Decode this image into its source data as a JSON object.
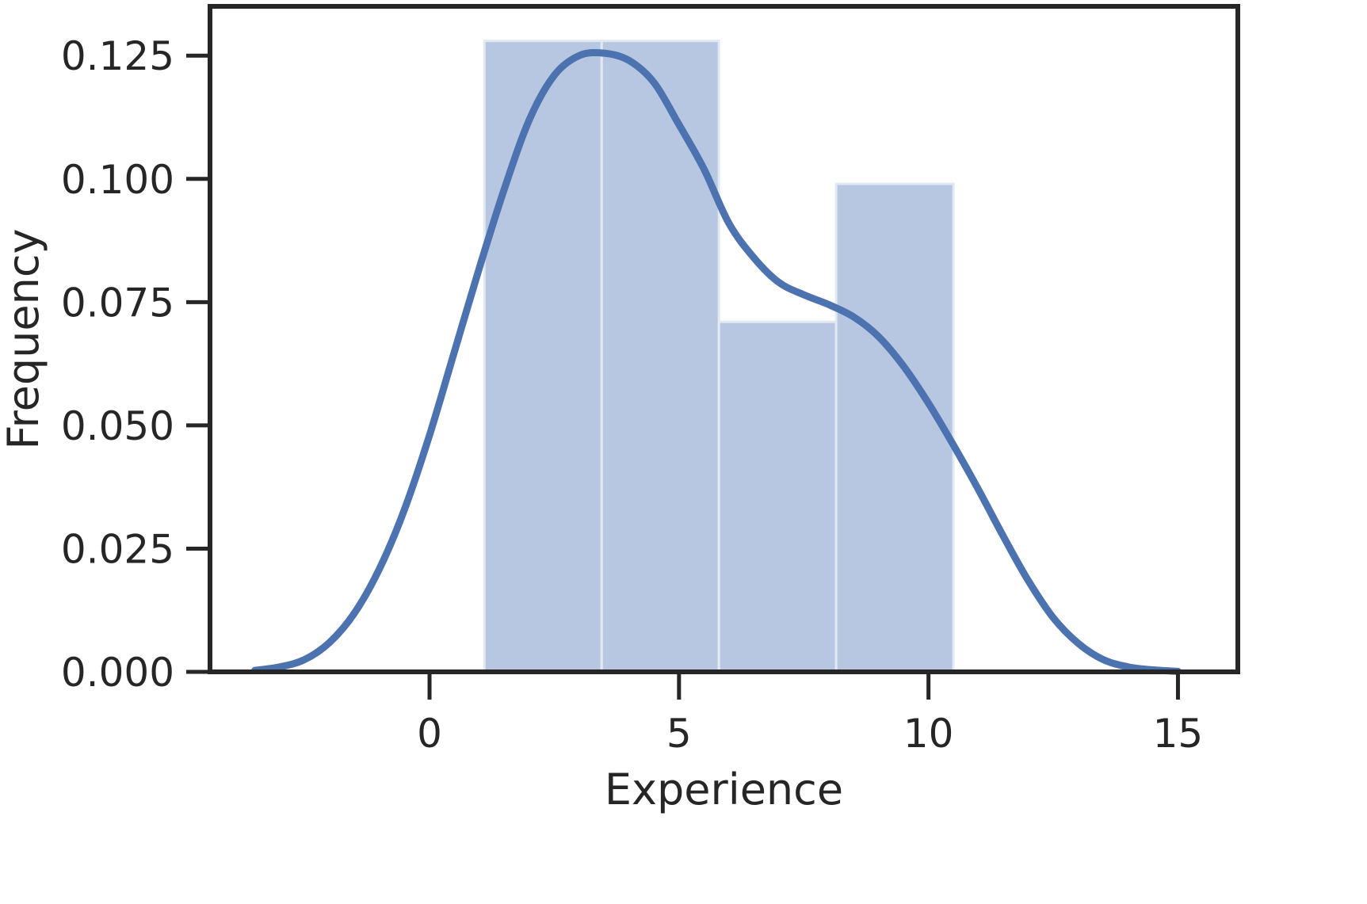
{
  "chart_data": {
    "type": "bar",
    "subtype": "histogram-with-kde",
    "title": "",
    "xlabel": "Experience",
    "ylabel": "Frequency",
    "xlim": [
      -4.4,
      16.2
    ],
    "ylim": [
      0,
      0.135
    ],
    "xticks": [
      0,
      5,
      10,
      15
    ],
    "yticks": [
      0.0,
      0.025,
      0.05,
      0.075,
      0.1,
      0.125
    ],
    "ytick_labels": [
      "0.000",
      "0.025",
      "0.050",
      "0.075",
      "0.100",
      "0.125"
    ],
    "xtick_labels": [
      "0",
      "5",
      "10",
      "15"
    ],
    "grid": false,
    "legend": "none",
    "histogram": {
      "bin_edges": [
        1.1,
        3.45,
        5.8,
        8.15,
        10.5
      ],
      "values": [
        0.128,
        0.128,
        0.071,
        0.099
      ],
      "color": "#b8c7e1",
      "edge_color": "#e3e9f3"
    },
    "kde": {
      "color": "#4c72b0",
      "x": [
        -3.5,
        -3.0,
        -2.5,
        -2.0,
        -1.5,
        -1.0,
        -0.5,
        0.0,
        0.5,
        1.0,
        1.5,
        2.0,
        2.5,
        3.0,
        3.5,
        4.0,
        4.5,
        5.0,
        5.5,
        6.0,
        6.5,
        7.0,
        7.5,
        8.0,
        8.5,
        9.0,
        9.5,
        10.0,
        10.5,
        11.0,
        11.5,
        12.0,
        12.5,
        13.0,
        13.5,
        14.0,
        14.5,
        15.0
      ],
      "y": [
        0.0003,
        0.001,
        0.0025,
        0.006,
        0.012,
        0.021,
        0.033,
        0.048,
        0.065,
        0.082,
        0.098,
        0.112,
        0.121,
        0.125,
        0.1255,
        0.124,
        0.1195,
        0.111,
        0.102,
        0.091,
        0.084,
        0.079,
        0.0765,
        0.0745,
        0.072,
        0.068,
        0.062,
        0.0545,
        0.046,
        0.037,
        0.0275,
        0.0185,
        0.011,
        0.0058,
        0.0025,
        0.001,
        0.0004,
        0.0001
      ]
    }
  }
}
